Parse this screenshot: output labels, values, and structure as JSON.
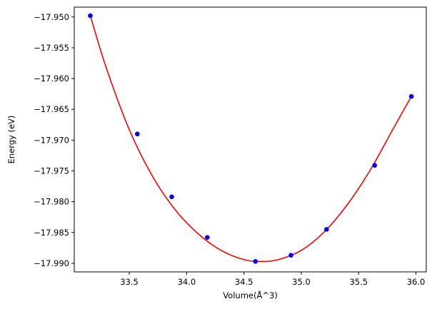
{
  "chart_data": {
    "type": "scatter",
    "title": "",
    "xlabel": "Volume(Å^3)",
    "ylabel": "Energy (eV)",
    "xlim": [
      33.02,
      36.09
    ],
    "ylim": [
      -17.9914,
      -17.9484
    ],
    "grid": false,
    "legend": "none",
    "x_ticks": [
      33.5,
      34.0,
      34.5,
      35.0,
      35.5,
      36.0
    ],
    "x_tick_labels": [
      "33.5",
      "34.0",
      "34.5",
      "35.0",
      "35.5",
      "36.0"
    ],
    "y_ticks": [
      -17.95,
      -17.955,
      -17.96,
      -17.965,
      -17.97,
      -17.975,
      -17.98,
      -17.985,
      -17.99
    ],
    "y_tick_labels": [
      "−17.950",
      "−17.955",
      "−17.960",
      "−17.965",
      "−17.970",
      "−17.975",
      "−17.980",
      "−17.985",
      "−17.990"
    ],
    "series": [
      {
        "kind": "points",
        "color": "#0000ff",
        "x": [
          33.16,
          33.57,
          33.87,
          34.18,
          34.6,
          34.91,
          35.22,
          35.64,
          35.96
        ],
        "y": [
          -17.9498,
          -17.969,
          -17.9792,
          -17.9858,
          -17.9897,
          -17.9887,
          -17.9845,
          -17.9741,
          -17.9629
        ]
      },
      {
        "kind": "fit-curve",
        "color": "#ff0000",
        "x": [
          33.16,
          33.3,
          33.5,
          33.7,
          33.9,
          34.1,
          34.3,
          34.5,
          34.65,
          34.8,
          35.0,
          35.2,
          35.4,
          35.6,
          35.8,
          35.96
        ],
        "y": [
          -17.9498,
          -17.9583,
          -17.9683,
          -17.9758,
          -17.9813,
          -17.9852,
          -17.9879,
          -17.9894,
          -17.9897,
          -17.9894,
          -17.9879,
          -17.9849,
          -17.9805,
          -17.9749,
          -17.9682,
          -17.9629
        ]
      }
    ]
  }
}
